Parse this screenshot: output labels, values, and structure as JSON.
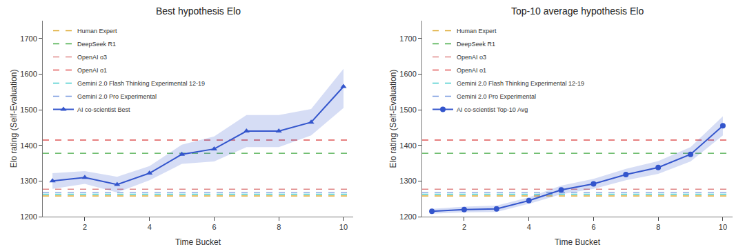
{
  "chart_data": [
    {
      "type": "line",
      "title": "Best hypothesis Elo",
      "xlabel": "Time Bucket",
      "ylabel": "Elo rating (Self-Evaluation)",
      "x": [
        1,
        2,
        3,
        4,
        5,
        6,
        7,
        8,
        9,
        10
      ],
      "series": [
        {
          "name": "AI co-scientist Best",
          "color": "#3355cc",
          "marker": "triangle",
          "values": [
            1300,
            1310,
            1290,
            1322,
            1375,
            1390,
            1440,
            1440,
            1465,
            1565
          ],
          "lower": [
            1278,
            1292,
            1268,
            1302,
            1348,
            1355,
            1395,
            1395,
            1428,
            1505
          ],
          "upper": [
            1322,
            1328,
            1312,
            1342,
            1402,
            1425,
            1485,
            1485,
            1502,
            1615
          ]
        },
        {
          "name": "Gemini 2.0 Pro Experimental",
          "type": "hline",
          "value": 1268,
          "color": "#7799dd",
          "line_style": "dashed"
        },
        {
          "name": "Gemini 2.0 Flash Thinking Experimental 12-19",
          "type": "hline",
          "value": 1263,
          "color": "#44cccc",
          "line_style": "dashed"
        },
        {
          "name": "OpenAI o1",
          "type": "hline",
          "value": 1415,
          "color": "#e05555",
          "line_style": "dashed"
        },
        {
          "name": "OpenAI o3",
          "type": "hline",
          "value": 1277,
          "color": "#e08888",
          "line_style": "dashed"
        },
        {
          "name": "DeepSeek R1",
          "type": "hline",
          "value": 1378,
          "color": "#44aa44",
          "line_style": "dashed"
        },
        {
          "name": "Human Expert",
          "type": "hline",
          "value": 1258,
          "color": "#ddaa33",
          "line_style": "dashed"
        }
      ],
      "xlim": [
        0.7,
        10.3
      ],
      "xticks": [
        2,
        4,
        6,
        8,
        10
      ],
      "ylim": [
        1200,
        1750
      ],
      "yticks": [
        1200,
        1300,
        1400,
        1500,
        1600,
        1700
      ],
      "grid": false,
      "legend": "upper left"
    },
    {
      "type": "line",
      "title": "Top-10 average hypothesis Elo",
      "xlabel": "Time Bucket",
      "ylabel": "Elo rating (Self-Evaluation)",
      "x": [
        1,
        2,
        3,
        4,
        5,
        6,
        7,
        8,
        9,
        10
      ],
      "series": [
        {
          "name": "AI co-scientist Top-10 Avg",
          "color": "#3355cc",
          "marker": "circle",
          "values": [
            1215,
            1220,
            1222,
            1245,
            1275,
            1292,
            1318,
            1338,
            1375,
            1455
          ],
          "lower": [
            1208,
            1212,
            1213,
            1236,
            1263,
            1278,
            1302,
            1320,
            1355,
            1428
          ],
          "upper": [
            1222,
            1228,
            1231,
            1254,
            1287,
            1306,
            1334,
            1356,
            1395,
            1482
          ]
        },
        {
          "name": "Gemini 2.0 Pro Experimental",
          "type": "hline",
          "value": 1268,
          "color": "#7799dd",
          "line_style": "dashed"
        },
        {
          "name": "Gemini 2.0 Flash Thinking Experimental 12-19",
          "type": "hline",
          "value": 1263,
          "color": "#44cccc",
          "line_style": "dashed"
        },
        {
          "name": "OpenAI o1",
          "type": "hline",
          "value": 1415,
          "color": "#e05555",
          "line_style": "dashed"
        },
        {
          "name": "OpenAI o3",
          "type": "hline",
          "value": 1277,
          "color": "#e08888",
          "line_style": "dashed"
        },
        {
          "name": "DeepSeek R1",
          "type": "hline",
          "value": 1378,
          "color": "#44aa44",
          "line_style": "dashed"
        },
        {
          "name": "Human Expert",
          "type": "hline",
          "value": 1258,
          "color": "#ddaa33",
          "line_style": "dashed"
        }
      ],
      "xlim": [
        0.7,
        10.3
      ],
      "xticks": [
        2,
        4,
        6,
        8,
        10
      ],
      "ylim": [
        1200,
        1750
      ],
      "yticks": [
        1200,
        1300,
        1400,
        1500,
        1600,
        1700
      ],
      "grid": false,
      "legend": "upper left"
    }
  ]
}
